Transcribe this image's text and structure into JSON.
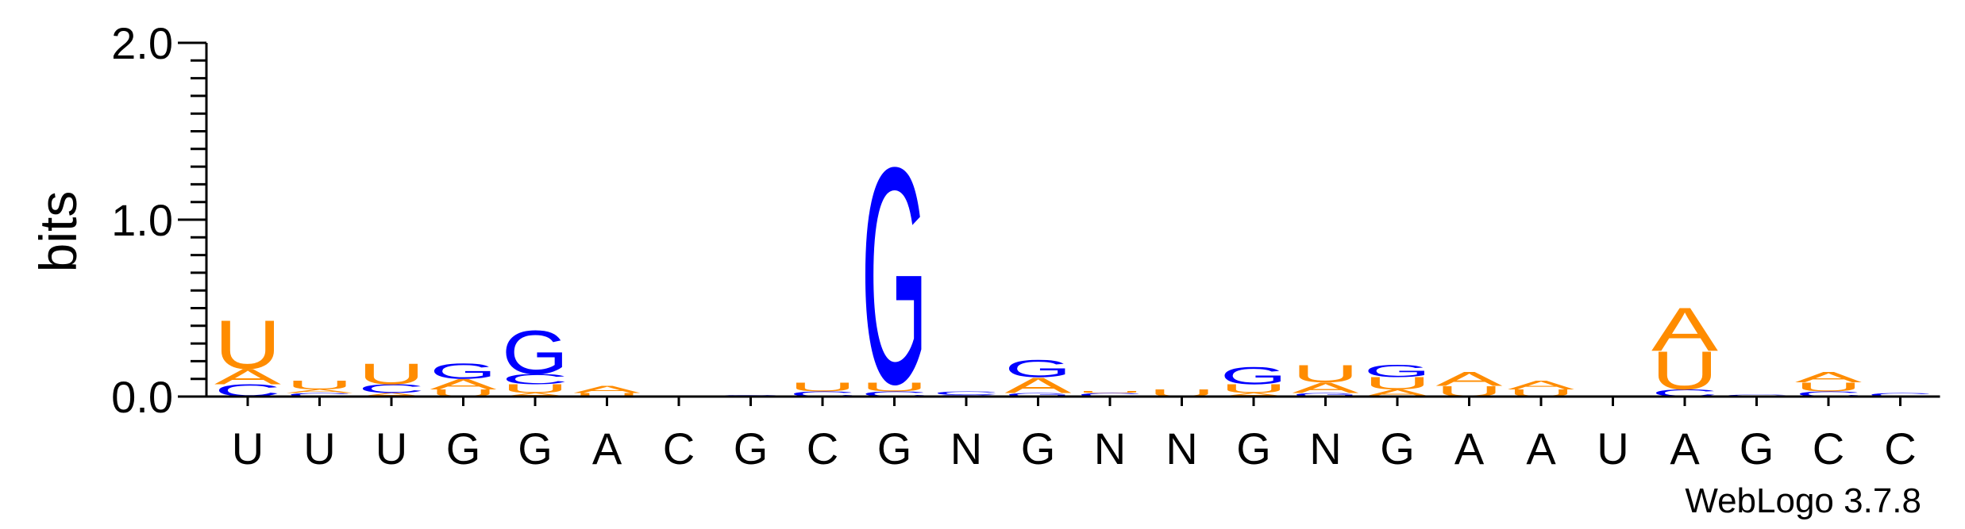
{
  "chart_data": {
    "type": "sequence-logo",
    "ylabel": "bits",
    "ylim": [
      0,
      2.0
    ],
    "yticks": [
      "0.0",
      "1.0",
      "2.0"
    ],
    "alphabet": {
      "A": "#ff8c00",
      "U": "#ff8c00",
      "G": "#0000ff",
      "C": "#0000ff"
    },
    "consensus": [
      "U",
      "U",
      "U",
      "G",
      "G",
      "A",
      "C",
      "G",
      "C",
      "G",
      "N",
      "G",
      "N",
      "N",
      "G",
      "N",
      "G",
      "A",
      "A",
      "U",
      "A",
      "G",
      "C",
      "C"
    ],
    "columns": [
      [
        [
          "C",
          0.07
        ],
        [
          "A",
          0.09
        ],
        [
          "U",
          0.28
        ]
      ],
      [
        [
          "C",
          0.02
        ],
        [
          "A",
          0.02
        ],
        [
          "U",
          0.05
        ]
      ],
      [
        [
          "A",
          0.02
        ],
        [
          "C",
          0.05
        ],
        [
          "U",
          0.12
        ]
      ],
      [
        [
          "U",
          0.04
        ],
        [
          "A",
          0.06
        ],
        [
          "G",
          0.09
        ]
      ],
      [
        [
          "A",
          0.02
        ],
        [
          "U",
          0.05
        ],
        [
          "C",
          0.06
        ],
        [
          "G",
          0.25
        ]
      ],
      [
        [
          "U",
          0.02
        ],
        [
          "A",
          0.04
        ]
      ],
      [
        [
          "C",
          0.005
        ]
      ],
      [
        [
          "G",
          0.01
        ]
      ],
      [
        [
          "C",
          0.03
        ],
        [
          "U",
          0.05
        ]
      ],
      [
        [
          "C",
          0.03
        ],
        [
          "U",
          0.05
        ],
        [
          "G",
          1.25
        ]
      ],
      [
        [
          "G",
          0.01
        ],
        [
          "C",
          0.02
        ]
      ],
      [
        [
          "G",
          0.02
        ],
        [
          "A",
          0.09
        ],
        [
          "G",
          0.1
        ]
      ],
      [
        [
          "C",
          0.02
        ],
        [
          "U",
          0.01
        ]
      ],
      [
        [
          "U",
          0.04
        ]
      ],
      [
        [
          "A",
          0.02
        ],
        [
          "U",
          0.05
        ],
        [
          "G",
          0.1
        ]
      ],
      [
        [
          "G",
          0.02
        ],
        [
          "A",
          0.06
        ],
        [
          "U",
          0.1
        ]
      ],
      [
        [
          "A",
          0.04
        ],
        [
          "U",
          0.07
        ],
        [
          "G",
          0.07
        ]
      ],
      [
        [
          "U",
          0.06
        ],
        [
          "A",
          0.08
        ]
      ],
      [
        [
          "U",
          0.04
        ],
        [
          "A",
          0.05
        ]
      ],
      [
        [
          "C",
          0.002
        ]
      ],
      [
        [
          "C",
          0.04
        ],
        [
          "U",
          0.22
        ],
        [
          "A",
          0.25
        ]
      ],
      [
        [
          "C",
          0.01
        ]
      ],
      [
        [
          "C",
          0.03
        ],
        [
          "U",
          0.05
        ],
        [
          "A",
          0.06
        ]
      ],
      [
        [
          "C",
          0.02
        ]
      ]
    ]
  },
  "credit": "WebLogo 3.7.8"
}
